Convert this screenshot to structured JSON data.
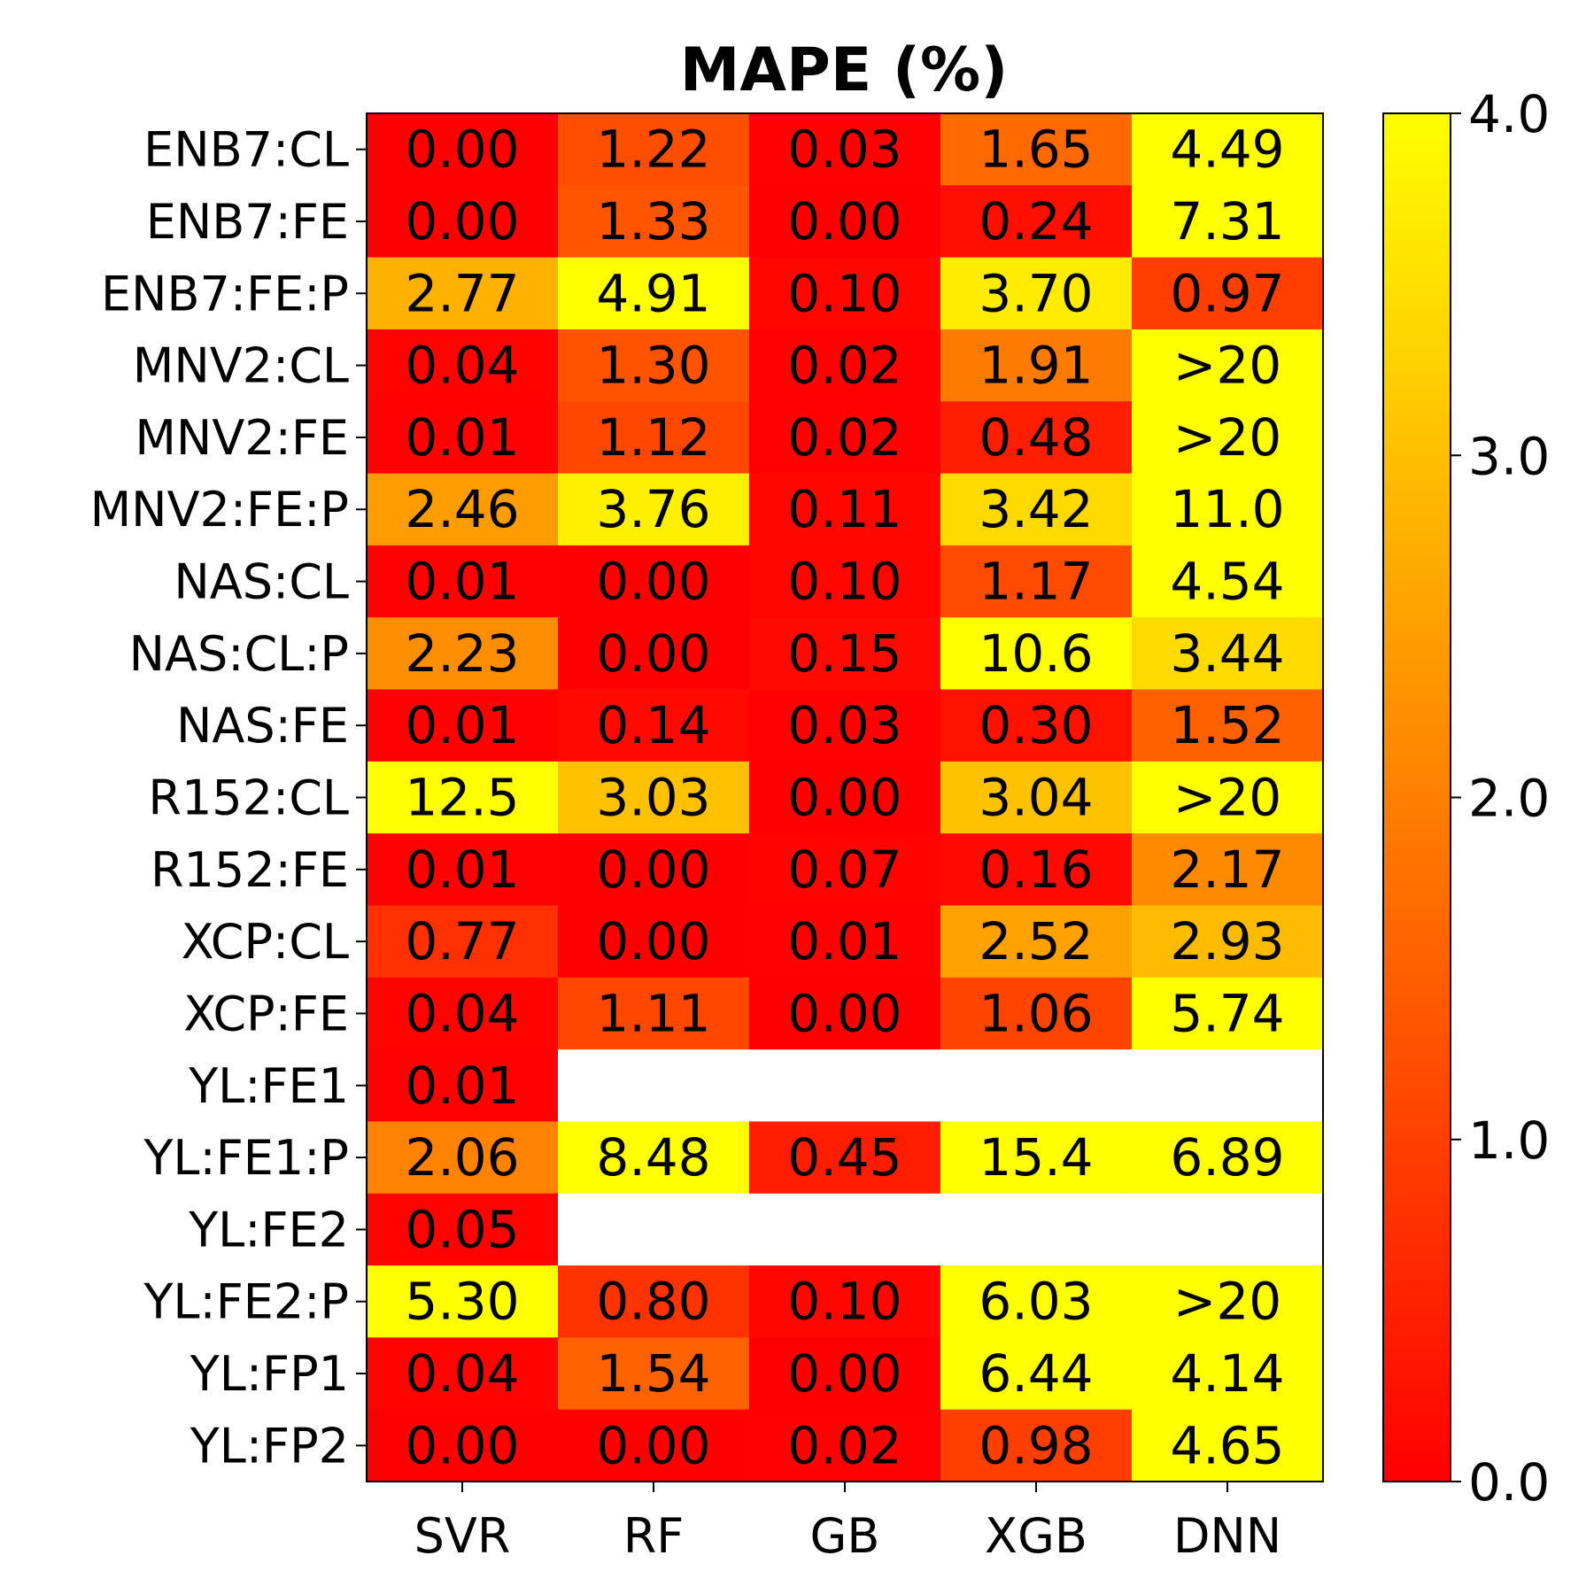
{
  "chart_data": {
    "type": "heatmap",
    "title": "MAPE (%)",
    "columns": [
      "SVR",
      "RF",
      "GB",
      "XGB",
      "DNN"
    ],
    "rows": [
      "ENB7:CL",
      "ENB7:FE",
      "ENB7:FE:P",
      "MNV2:CL",
      "MNV2:FE",
      "MNV2:FE:P",
      "NAS:CL",
      "NAS:CL:P",
      "NAS:FE",
      "R152:CL",
      "R152:FE",
      "XCP:CL",
      "XCP:FE",
      "YL:FE1",
      "YL:FE1:P",
      "YL:FE2",
      "YL:FE2:P",
      "YL:FP1",
      "YL:FP2"
    ],
    "values": [
      [
        0.0,
        1.22,
        0.03,
        1.65,
        4.49
      ],
      [
        0.0,
        1.33,
        0.0,
        0.24,
        7.31
      ],
      [
        2.77,
        4.91,
        0.1,
        3.7,
        0.97
      ],
      [
        0.04,
        1.3,
        0.02,
        1.91,
        20
      ],
      [
        0.01,
        1.12,
        0.02,
        0.48,
        20
      ],
      [
        2.46,
        3.76,
        0.11,
        3.42,
        11.0
      ],
      [
        0.01,
        0.0,
        0.1,
        1.17,
        4.54
      ],
      [
        2.23,
        0.0,
        0.15,
        10.6,
        3.44
      ],
      [
        0.01,
        0.14,
        0.03,
        0.3,
        1.52
      ],
      [
        12.5,
        3.03,
        0.0,
        3.04,
        20
      ],
      [
        0.01,
        0.0,
        0.07,
        0.16,
        2.17
      ],
      [
        0.77,
        0.0,
        0.01,
        2.52,
        2.93
      ],
      [
        0.04,
        1.11,
        0.0,
        1.06,
        5.74
      ],
      [
        0.01,
        null,
        null,
        null,
        null
      ],
      [
        2.06,
        8.48,
        0.45,
        15.4,
        6.89
      ],
      [
        0.05,
        null,
        null,
        null,
        null
      ],
      [
        5.3,
        0.8,
        0.1,
        6.03,
        20
      ],
      [
        0.04,
        1.54,
        0.0,
        6.44,
        4.14
      ],
      [
        0.0,
        0.0,
        0.02,
        0.98,
        4.65
      ]
    ],
    "labels": [
      [
        "0.00",
        "1.22",
        "0.03",
        "1.65",
        "4.49"
      ],
      [
        "0.00",
        "1.33",
        "0.00",
        "0.24",
        "7.31"
      ],
      [
        "2.77",
        "4.91",
        "0.10",
        "3.70",
        "0.97"
      ],
      [
        "0.04",
        "1.30",
        "0.02",
        "1.91",
        ">20"
      ],
      [
        "0.01",
        "1.12",
        "0.02",
        "0.48",
        ">20"
      ],
      [
        "2.46",
        "3.76",
        "0.11",
        "3.42",
        "11.0"
      ],
      [
        "0.01",
        "0.00",
        "0.10",
        "1.17",
        "4.54"
      ],
      [
        "2.23",
        "0.00",
        "0.15",
        "10.6",
        "3.44"
      ],
      [
        "0.01",
        "0.14",
        "0.03",
        "0.30",
        "1.52"
      ],
      [
        "12.5",
        "3.03",
        "0.00",
        "3.04",
        ">20"
      ],
      [
        "0.01",
        "0.00",
        "0.07",
        "0.16",
        "2.17"
      ],
      [
        "0.77",
        "0.00",
        "0.01",
        "2.52",
        "2.93"
      ],
      [
        "0.04",
        "1.11",
        "0.00",
        "1.06",
        "5.74"
      ],
      [
        "0.01",
        "",
        "",
        "",
        ""
      ],
      [
        "2.06",
        "8.48",
        "0.45",
        "15.4",
        "6.89"
      ],
      [
        "0.05",
        "",
        "",
        "",
        ""
      ],
      [
        "5.30",
        "0.80",
        "0.10",
        "6.03",
        ">20"
      ],
      [
        "0.04",
        "1.54",
        "0.00",
        "6.44",
        "4.14"
      ],
      [
        "0.00",
        "0.00",
        "0.02",
        "0.98",
        "4.65"
      ]
    ],
    "colormap": "autumn",
    "colormap_low": "#ff0000",
    "colormap_high": "#ffff00",
    "missing_color": "#ffffff",
    "vmin": 0.0,
    "vmax": 4.0,
    "colorbar_ticks": [
      0.0,
      1.0,
      2.0,
      3.0,
      4.0
    ],
    "colorbar_tick_labels": [
      "0.0",
      "1.0",
      "2.0",
      "3.0",
      "4.0"
    ]
  }
}
